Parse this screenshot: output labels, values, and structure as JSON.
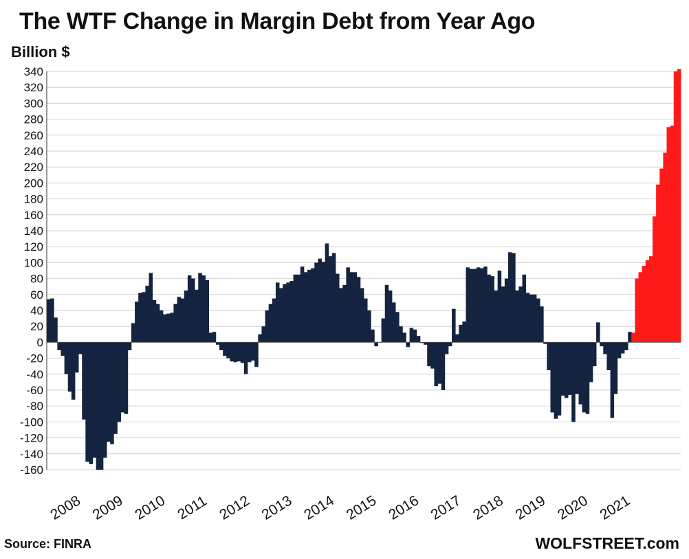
{
  "chart_data": {
    "type": "bar",
    "title": "The WTF Change in Margin Debt from Year Ago",
    "ylabel": "Billion $",
    "xlabel": "",
    "ylim": [
      -160,
      340
    ],
    "ytick_step": 20,
    "grid": true,
    "x_tick_labels": [
      "2008",
      "2009",
      "2010",
      "2011",
      "2012",
      "2013",
      "2014",
      "2015",
      "2016",
      "2017",
      "2018",
      "2019",
      "2020",
      "2021"
    ],
    "x_start_year": 2008,
    "series": [
      {
        "color": "#142440",
        "values": [
          54,
          55,
          31,
          -10,
          -17,
          -40,
          -62,
          -72,
          -38,
          -15,
          -97,
          -150,
          -153,
          -145,
          -160,
          -160,
          -145,
          -125,
          -128,
          -115,
          -100,
          -88,
          -90,
          -10,
          24,
          51,
          62,
          63,
          71,
          87,
          53,
          48,
          40,
          35,
          36,
          37,
          48,
          57,
          55,
          65,
          84,
          80,
          66,
          87,
          84,
          78,
          12,
          13,
          -3,
          -10,
          -17,
          -20,
          -24,
          -25,
          -24,
          -26,
          -40,
          -25,
          -23,
          -31,
          10,
          20,
          40,
          48,
          55,
          75,
          68,
          73,
          75,
          77,
          85,
          85,
          95,
          88,
          91,
          93,
          100,
          105,
          101,
          124,
          108,
          112,
          86,
          68,
          72,
          94,
          88,
          88,
          82,
          68,
          55,
          40,
          16,
          -5,
          0,
          30,
          72,
          65,
          50,
          38,
          20,
          12,
          -6,
          18,
          16,
          8,
          -1,
          -3,
          -30,
          -33,
          -55,
          -52,
          -60,
          -15,
          -5,
          42,
          10,
          22,
          26,
          94,
          92,
          92,
          94,
          93,
          95,
          85,
          83,
          65,
          90,
          70,
          80,
          113,
          112,
          65,
          70,
          85,
          62,
          60,
          60,
          55,
          45,
          -2,
          -35,
          -88,
          -96,
          -92,
          -67,
          -70,
          -66,
          -100,
          -65,
          -78,
          -88,
          -90,
          -50,
          -30,
          25,
          -5,
          -15,
          -35,
          -95,
          -65,
          -20,
          -14,
          -10,
          13
        ],
        "highlight_color": "#ff1a1a",
        "highlight_values": [
          12,
          80,
          88,
          96,
          103,
          108,
          158,
          198,
          218,
          238,
          270,
          272,
          340,
          343
        ]
      }
    ]
  },
  "source": "Source: FINRA",
  "brand": "WOLFSTREET.com",
  "colors": {
    "bar": "#142440",
    "highlight": "#ff1a1a",
    "grid": "#d2d2d2"
  }
}
